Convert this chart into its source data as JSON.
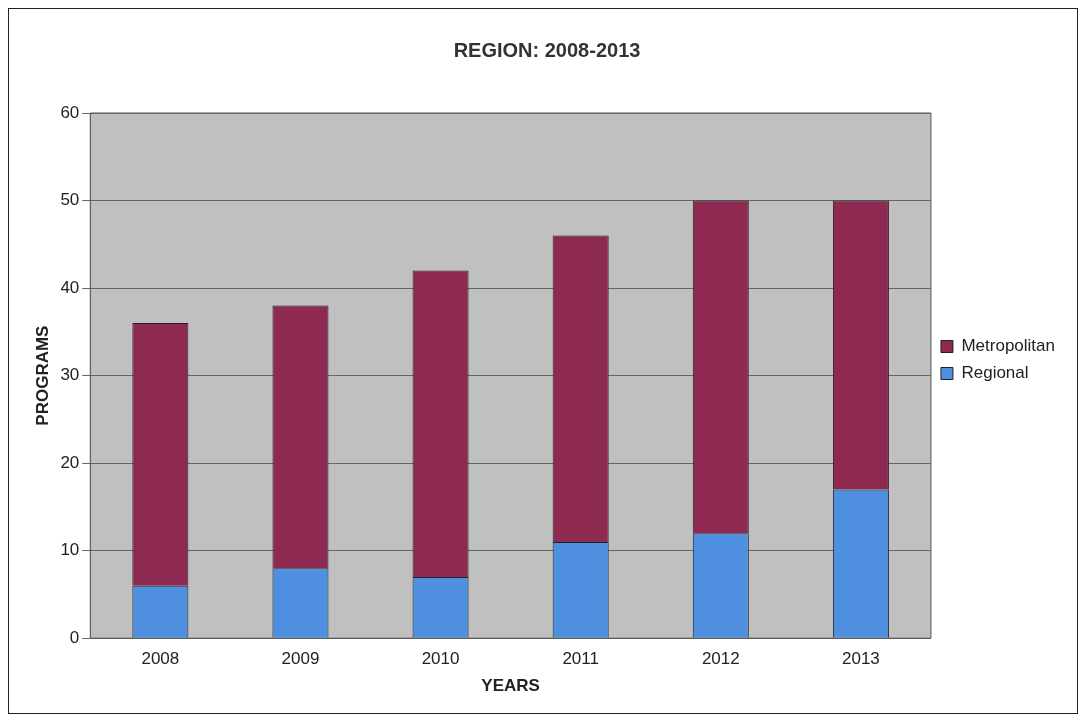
{
  "chart_data": {
    "type": "bar",
    "title": "REGION: 2008-2013",
    "xlabel": "YEARS",
    "ylabel": "PROGRAMS",
    "categories": [
      "2008",
      "2009",
      "2010",
      "2011",
      "2012",
      "2013"
    ],
    "series": [
      {
        "name": "Regional",
        "color": "#4f8fdf",
        "values": [
          6,
          8,
          7,
          11,
          12,
          17
        ]
      },
      {
        "name": "Metropolitan",
        "color": "#8e2a52",
        "values": [
          30,
          30,
          35,
          35,
          38,
          33
        ]
      }
    ],
    "stacked": true,
    "ylim": [
      0,
      60
    ],
    "yticks": [
      0,
      10,
      20,
      30,
      40,
      50,
      60
    ],
    "grid": "y",
    "legend": "right"
  }
}
